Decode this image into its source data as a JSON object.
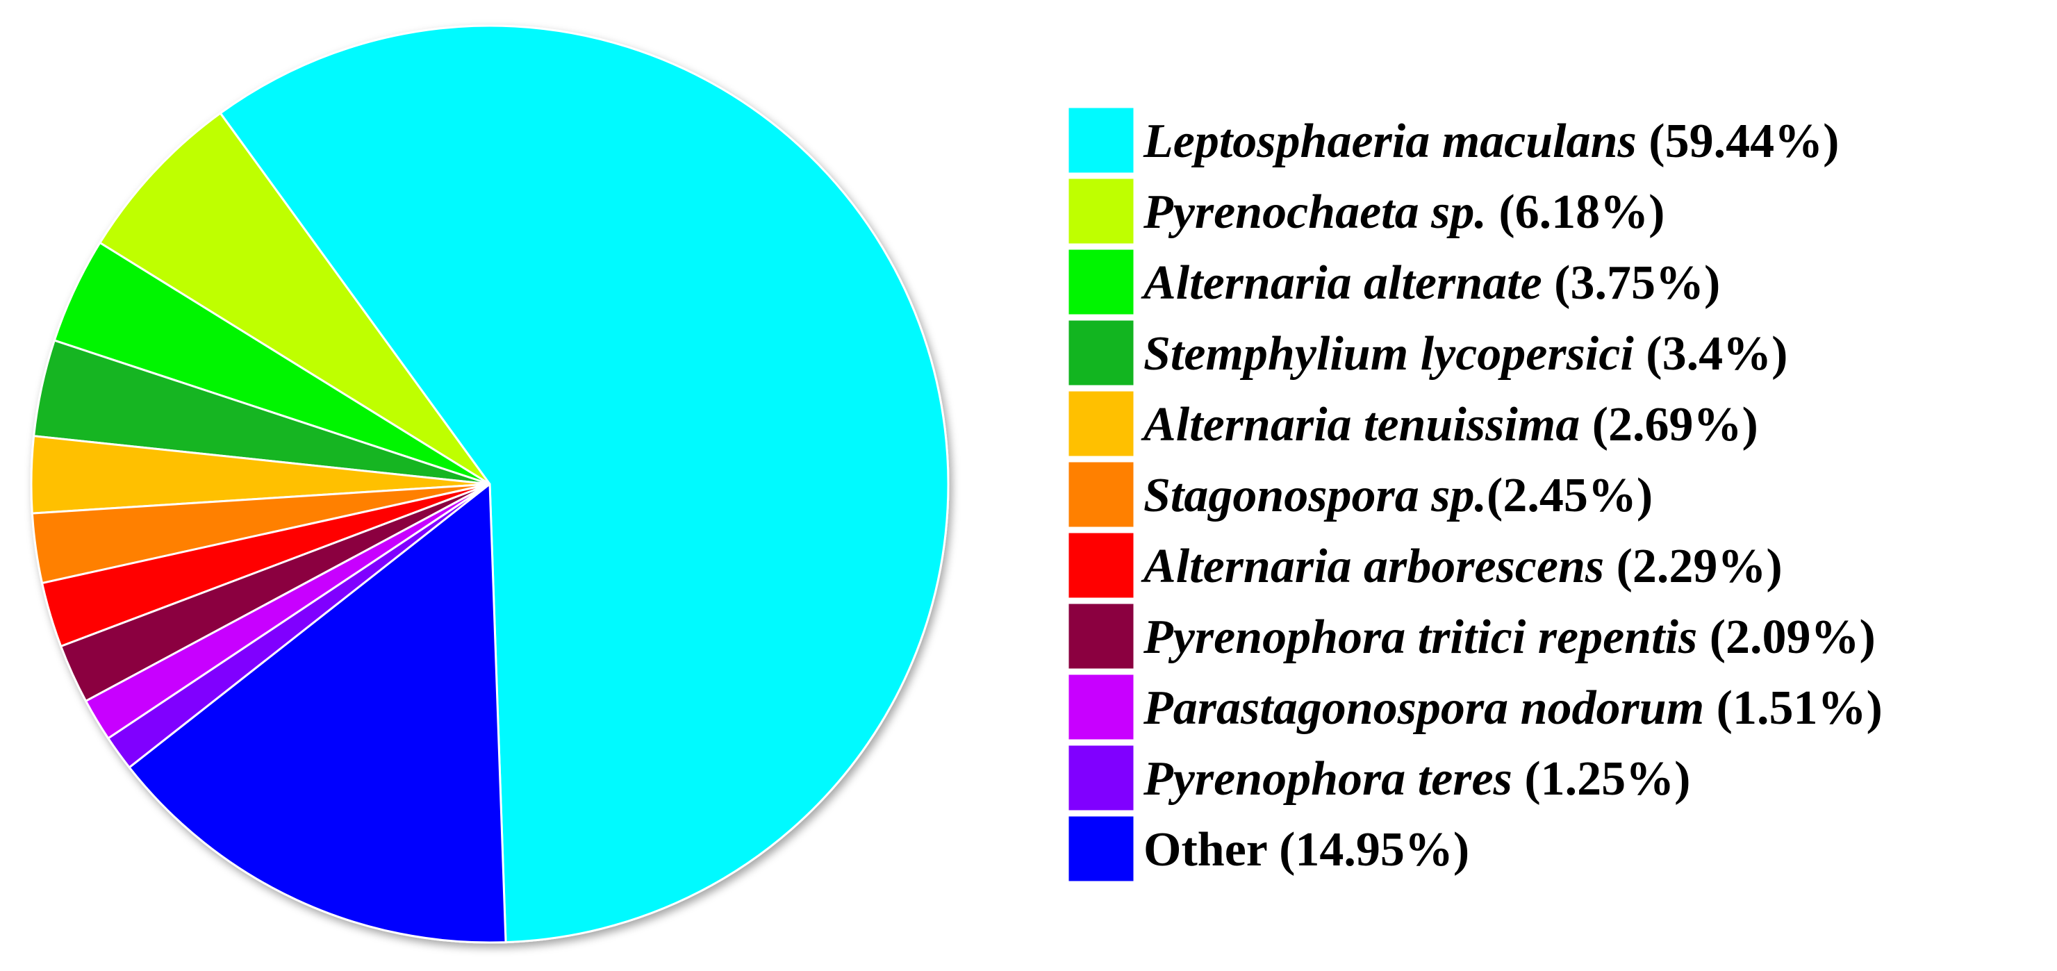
{
  "chart_data": {
    "type": "pie",
    "title": "",
    "legend_position": "right",
    "slices": [
      {
        "name": "Leptosphaeria maculans",
        "pct_label": " (59.44%)",
        "value": 59.44,
        "color": "#00FAFF"
      },
      {
        "name": "Pyrenochaeta sp.",
        "pct_label": " (6.18%)",
        "value": 6.18,
        "color": "#BFFF00"
      },
      {
        "name": "Alternaria alternate",
        "pct_label": " (3.75%)",
        "value": 3.75,
        "color": "#00F500"
      },
      {
        "name": "Stemphylium lycopersici",
        "pct_label": " (3.4%)",
        "value": 3.4,
        "color": "#12B520"
      },
      {
        "name": "Alternaria tenuissima",
        "pct_label": " (2.69%)",
        "value": 2.69,
        "color": "#FFC000"
      },
      {
        "name": "Stagonospora sp.",
        "pct_label": "(2.45%)",
        "value": 2.45,
        "color": "#FF8000"
      },
      {
        "name": "Alternaria arborescens",
        "pct_label": " (2.29%)",
        "value": 2.29,
        "color": "#FF0000"
      },
      {
        "name": "Pyrenophora tritici repentis",
        "pct_label": " (2.09%)",
        "value": 2.09,
        "color": "#8B0040"
      },
      {
        "name": "Parastagonospora nodorum",
        "pct_label": " (1.51%)",
        "value": 1.51,
        "color": "#C800FF"
      },
      {
        "name": "Pyrenophora teres",
        "pct_label": " (1.25%)",
        "value": 1.25,
        "color": "#8000FF"
      },
      {
        "name": "Other",
        "pct_label": " (14.95%)",
        "value": 14.95,
        "color": "#0000FF",
        "plain": true
      }
    ]
  }
}
